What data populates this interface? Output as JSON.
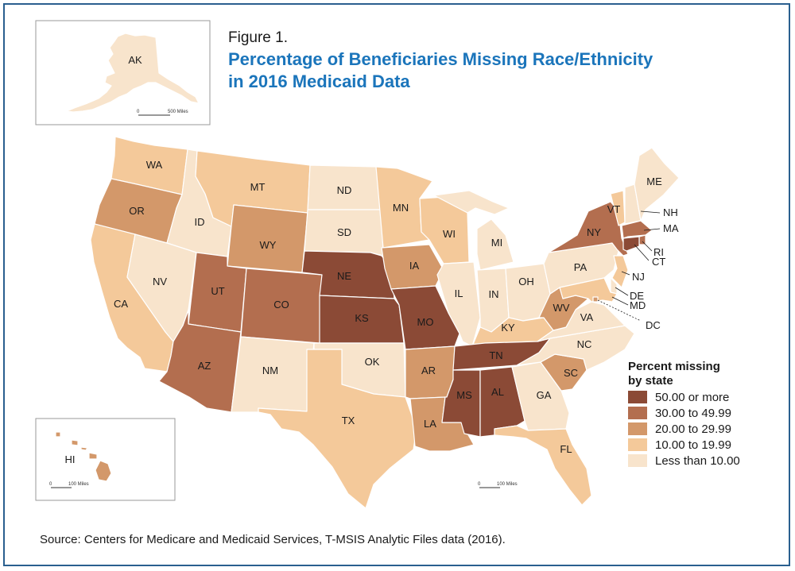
{
  "figure_label": "Figure 1.",
  "title_line1": "Percentage of Beneficiaries Missing Race/Ethnicity",
  "title_line2": "in 2016 Medicaid Data",
  "legend": {
    "title_line1": "Percent missing",
    "title_line2": "by state",
    "classes": [
      {
        "label": "50.00 or more",
        "color": "#8b4a36"
      },
      {
        "label": "30.00 to 49.99",
        "color": "#b36e4f"
      },
      {
        "label": "20.00 to 29.99",
        "color": "#d3986a"
      },
      {
        "label": "10.00 to 19.99",
        "color": "#f4c99a"
      },
      {
        "label": "Less than 10.00",
        "color": "#f8e4cc"
      }
    ]
  },
  "scale_bars": {
    "alaska": {
      "zero": "0",
      "distance": "500 Miles"
    },
    "hawaii": {
      "zero": "0",
      "distance": "100 Miles"
    },
    "mainland": {
      "zero": "0",
      "distance": "100 Miles"
    }
  },
  "source": "Source: Centers for Medicare and Medicaid Services, T-MSIS Analytic Files data (2016).",
  "states": [
    {
      "abbr": "WA",
      "class": 3
    },
    {
      "abbr": "OR",
      "class": 2
    },
    {
      "abbr": "CA",
      "class": 3
    },
    {
      "abbr": "ID",
      "class": 4
    },
    {
      "abbr": "NV",
      "class": 4
    },
    {
      "abbr": "MT",
      "class": 3
    },
    {
      "abbr": "WY",
      "class": 2
    },
    {
      "abbr": "UT",
      "class": 1
    },
    {
      "abbr": "AZ",
      "class": 1
    },
    {
      "abbr": "CO",
      "class": 1
    },
    {
      "abbr": "NM",
      "class": 4
    },
    {
      "abbr": "ND",
      "class": 4
    },
    {
      "abbr": "SD",
      "class": 4
    },
    {
      "abbr": "NE",
      "class": 0
    },
    {
      "abbr": "KS",
      "class": 0
    },
    {
      "abbr": "OK",
      "class": 4
    },
    {
      "abbr": "TX",
      "class": 3
    },
    {
      "abbr": "MN",
      "class": 3
    },
    {
      "abbr": "IA",
      "class": 2
    },
    {
      "abbr": "MO",
      "class": 0
    },
    {
      "abbr": "AR",
      "class": 2
    },
    {
      "abbr": "LA",
      "class": 2
    },
    {
      "abbr": "WI",
      "class": 3
    },
    {
      "abbr": "IL",
      "class": 4
    },
    {
      "abbr": "MI",
      "class": 4
    },
    {
      "abbr": "IN",
      "class": 4
    },
    {
      "abbr": "OH",
      "class": 4
    },
    {
      "abbr": "KY",
      "class": 3
    },
    {
      "abbr": "TN",
      "class": 0
    },
    {
      "abbr": "MS",
      "class": 0
    },
    {
      "abbr": "AL",
      "class": 0
    },
    {
      "abbr": "GA",
      "class": 4
    },
    {
      "abbr": "FL",
      "class": 3
    },
    {
      "abbr": "SC",
      "class": 2
    },
    {
      "abbr": "NC",
      "class": 4
    },
    {
      "abbr": "VA",
      "class": 4
    },
    {
      "abbr": "WV",
      "class": 2
    },
    {
      "abbr": "PA",
      "class": 4
    },
    {
      "abbr": "NY",
      "class": 1
    },
    {
      "abbr": "VT",
      "class": 3
    },
    {
      "abbr": "NH",
      "class": 4
    },
    {
      "abbr": "ME",
      "class": 4
    },
    {
      "abbr": "MA",
      "class": 1
    },
    {
      "abbr": "RI",
      "class": 1
    },
    {
      "abbr": "CT",
      "class": 0
    },
    {
      "abbr": "NJ",
      "class": 3
    },
    {
      "abbr": "DE",
      "class": 4
    },
    {
      "abbr": "MD",
      "class": 3
    },
    {
      "abbr": "DC",
      "class": 2
    },
    {
      "abbr": "AK",
      "class": 4
    },
    {
      "abbr": "HI",
      "class": 2
    }
  ]
}
